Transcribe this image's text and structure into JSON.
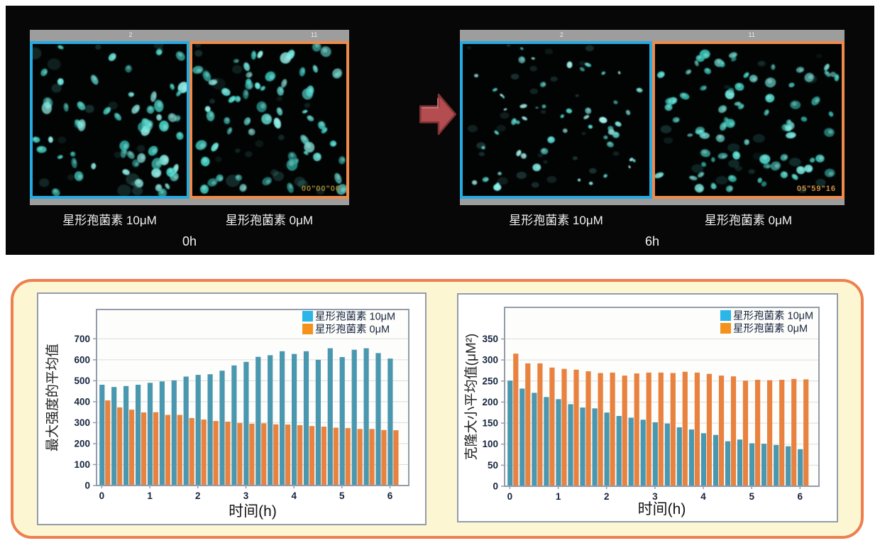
{
  "top_panel": {
    "panels": [
      {
        "header_numbers": [
          "2",
          "11"
        ],
        "left_label": "星形孢菌素 10μM",
        "right_label": "星形孢菌素 0μM",
        "time_label": "0h",
        "timestamp": "00\"00\"00"
      },
      {
        "header_numbers": [
          "2",
          "11"
        ],
        "left_label": "星形孢菌素 10μM",
        "right_label": "星形孢菌素 0μM",
        "time_label": "6h",
        "timestamp": "05\"59\"16"
      }
    ]
  },
  "microscopy": {
    "background": "#020404",
    "images": [
      {
        "seed": 7,
        "count": 60,
        "rmin": 4,
        "rmax": 9,
        "dim": 20,
        "palette": [
          "#63e0d6",
          "#3fcabd",
          "#8ceee6",
          "#2fb3a8"
        ]
      },
      {
        "seed": 13,
        "count": 64,
        "rmin": 4,
        "rmax": 9,
        "dim": 20,
        "palette": [
          "#63e0d6",
          "#45cec2",
          "#8ceee6",
          "#2fb3a8"
        ]
      },
      {
        "seed": 21,
        "count": 54,
        "rmin": 2,
        "rmax": 5.5,
        "dim": 26,
        "palette": [
          "#7df0e8",
          "#55dcd2",
          "#a5f5ef"
        ]
      },
      {
        "seed": 33,
        "count": 80,
        "rmin": 3.5,
        "rmax": 7,
        "dim": 18,
        "palette": [
          "#4ccfc2",
          "#35b9ac",
          "#6fdfd5"
        ]
      }
    ]
  },
  "colors": {
    "accent_blue": "#25aae1",
    "accent_orange": "#ee8a4a",
    "arrow_fill": "#b34d4f",
    "arrow_stroke": "#823336",
    "panel_background": "#fcf6d3",
    "panel_border": "#ee7f4e",
    "card_border": "#949cab",
    "grid": "#dcdcdc",
    "tick_text": "#16253e"
  },
  "chart_data": [
    {
      "type": "bar",
      "title": "",
      "xlabel": "时间(h)",
      "ylabel": "最大强度的平均值",
      "x": [
        0,
        0.25,
        0.5,
        0.75,
        1,
        1.25,
        1.5,
        1.75,
        2,
        2.25,
        2.5,
        2.75,
        3,
        3.25,
        3.5,
        3.75,
        4,
        4.25,
        4.5,
        4.75,
        5,
        5.25,
        5.5,
        5.75,
        6
      ],
      "series": [
        {
          "name": "星形孢菌素 10μM",
          "legend_color": "#2bb5e9",
          "bar_color": "#4a97b0",
          "values": [
            481,
            470,
            475,
            481,
            490,
            497,
            502,
            520,
            528,
            531,
            548,
            573,
            590,
            614,
            622,
            641,
            628,
            641,
            600,
            655,
            613,
            648,
            655,
            632,
            606
          ]
        },
        {
          "name": "星形孢菌素  0μM",
          "legend_color": "#f5921e",
          "bar_color": "#e8823e",
          "values": [
            406,
            373,
            362,
            349,
            350,
            337,
            337,
            322,
            315,
            308,
            305,
            298,
            295,
            297,
            292,
            291,
            288,
            284,
            281,
            276,
            274,
            270,
            270,
            265,
            264
          ]
        }
      ],
      "ylim": [
        0,
        840
      ],
      "xlim": [
        -0.05,
        6.45
      ],
      "yticks": [
        0,
        100,
        200,
        300,
        400,
        500,
        600,
        700
      ],
      "xticks": [
        0,
        1,
        2,
        3,
        4,
        5,
        6
      ],
      "grid": true,
      "legend_position": "top-right"
    },
    {
      "type": "bar",
      "title": "",
      "xlabel": "时间(h)",
      "ylabel": "克隆大小平均值(μM²)",
      "x": [
        0,
        0.25,
        0.5,
        0.75,
        1,
        1.25,
        1.5,
        1.75,
        2,
        2.25,
        2.5,
        2.75,
        3,
        3.25,
        3.5,
        3.75,
        4,
        4.25,
        4.5,
        4.75,
        5,
        5.25,
        5.5,
        5.75,
        6
      ],
      "series": [
        {
          "name": "星形孢菌素 10μM",
          "legend_color": "#2bb5e9",
          "bar_color": "#4a97b0",
          "values": [
            251,
            232,
            222,
            212,
            207,
            195,
            187,
            185,
            175,
            167,
            163,
            158,
            152,
            149,
            140,
            135,
            126,
            122,
            107,
            111,
            102,
            101,
            98,
            95,
            88
          ]
        },
        {
          "name": "星形孢菌素  0μM",
          "legend_color": "#f5921e",
          "bar_color": "#e8823e",
          "values": [
            315,
            292,
            292,
            282,
            279,
            277,
            273,
            269,
            270,
            263,
            268,
            270,
            270,
            269,
            272,
            270,
            267,
            263,
            261,
            251,
            253,
            252,
            253,
            255,
            254
          ]
        }
      ],
      "ylim": [
        0,
        425
      ],
      "xlim": [
        -0.05,
        6.45
      ],
      "yticks": [
        0,
        50,
        100,
        150,
        200,
        250,
        300,
        350
      ],
      "xticks": [
        0,
        1,
        2,
        3,
        4,
        5,
        6
      ],
      "grid": true,
      "legend_position": "top-right"
    }
  ]
}
